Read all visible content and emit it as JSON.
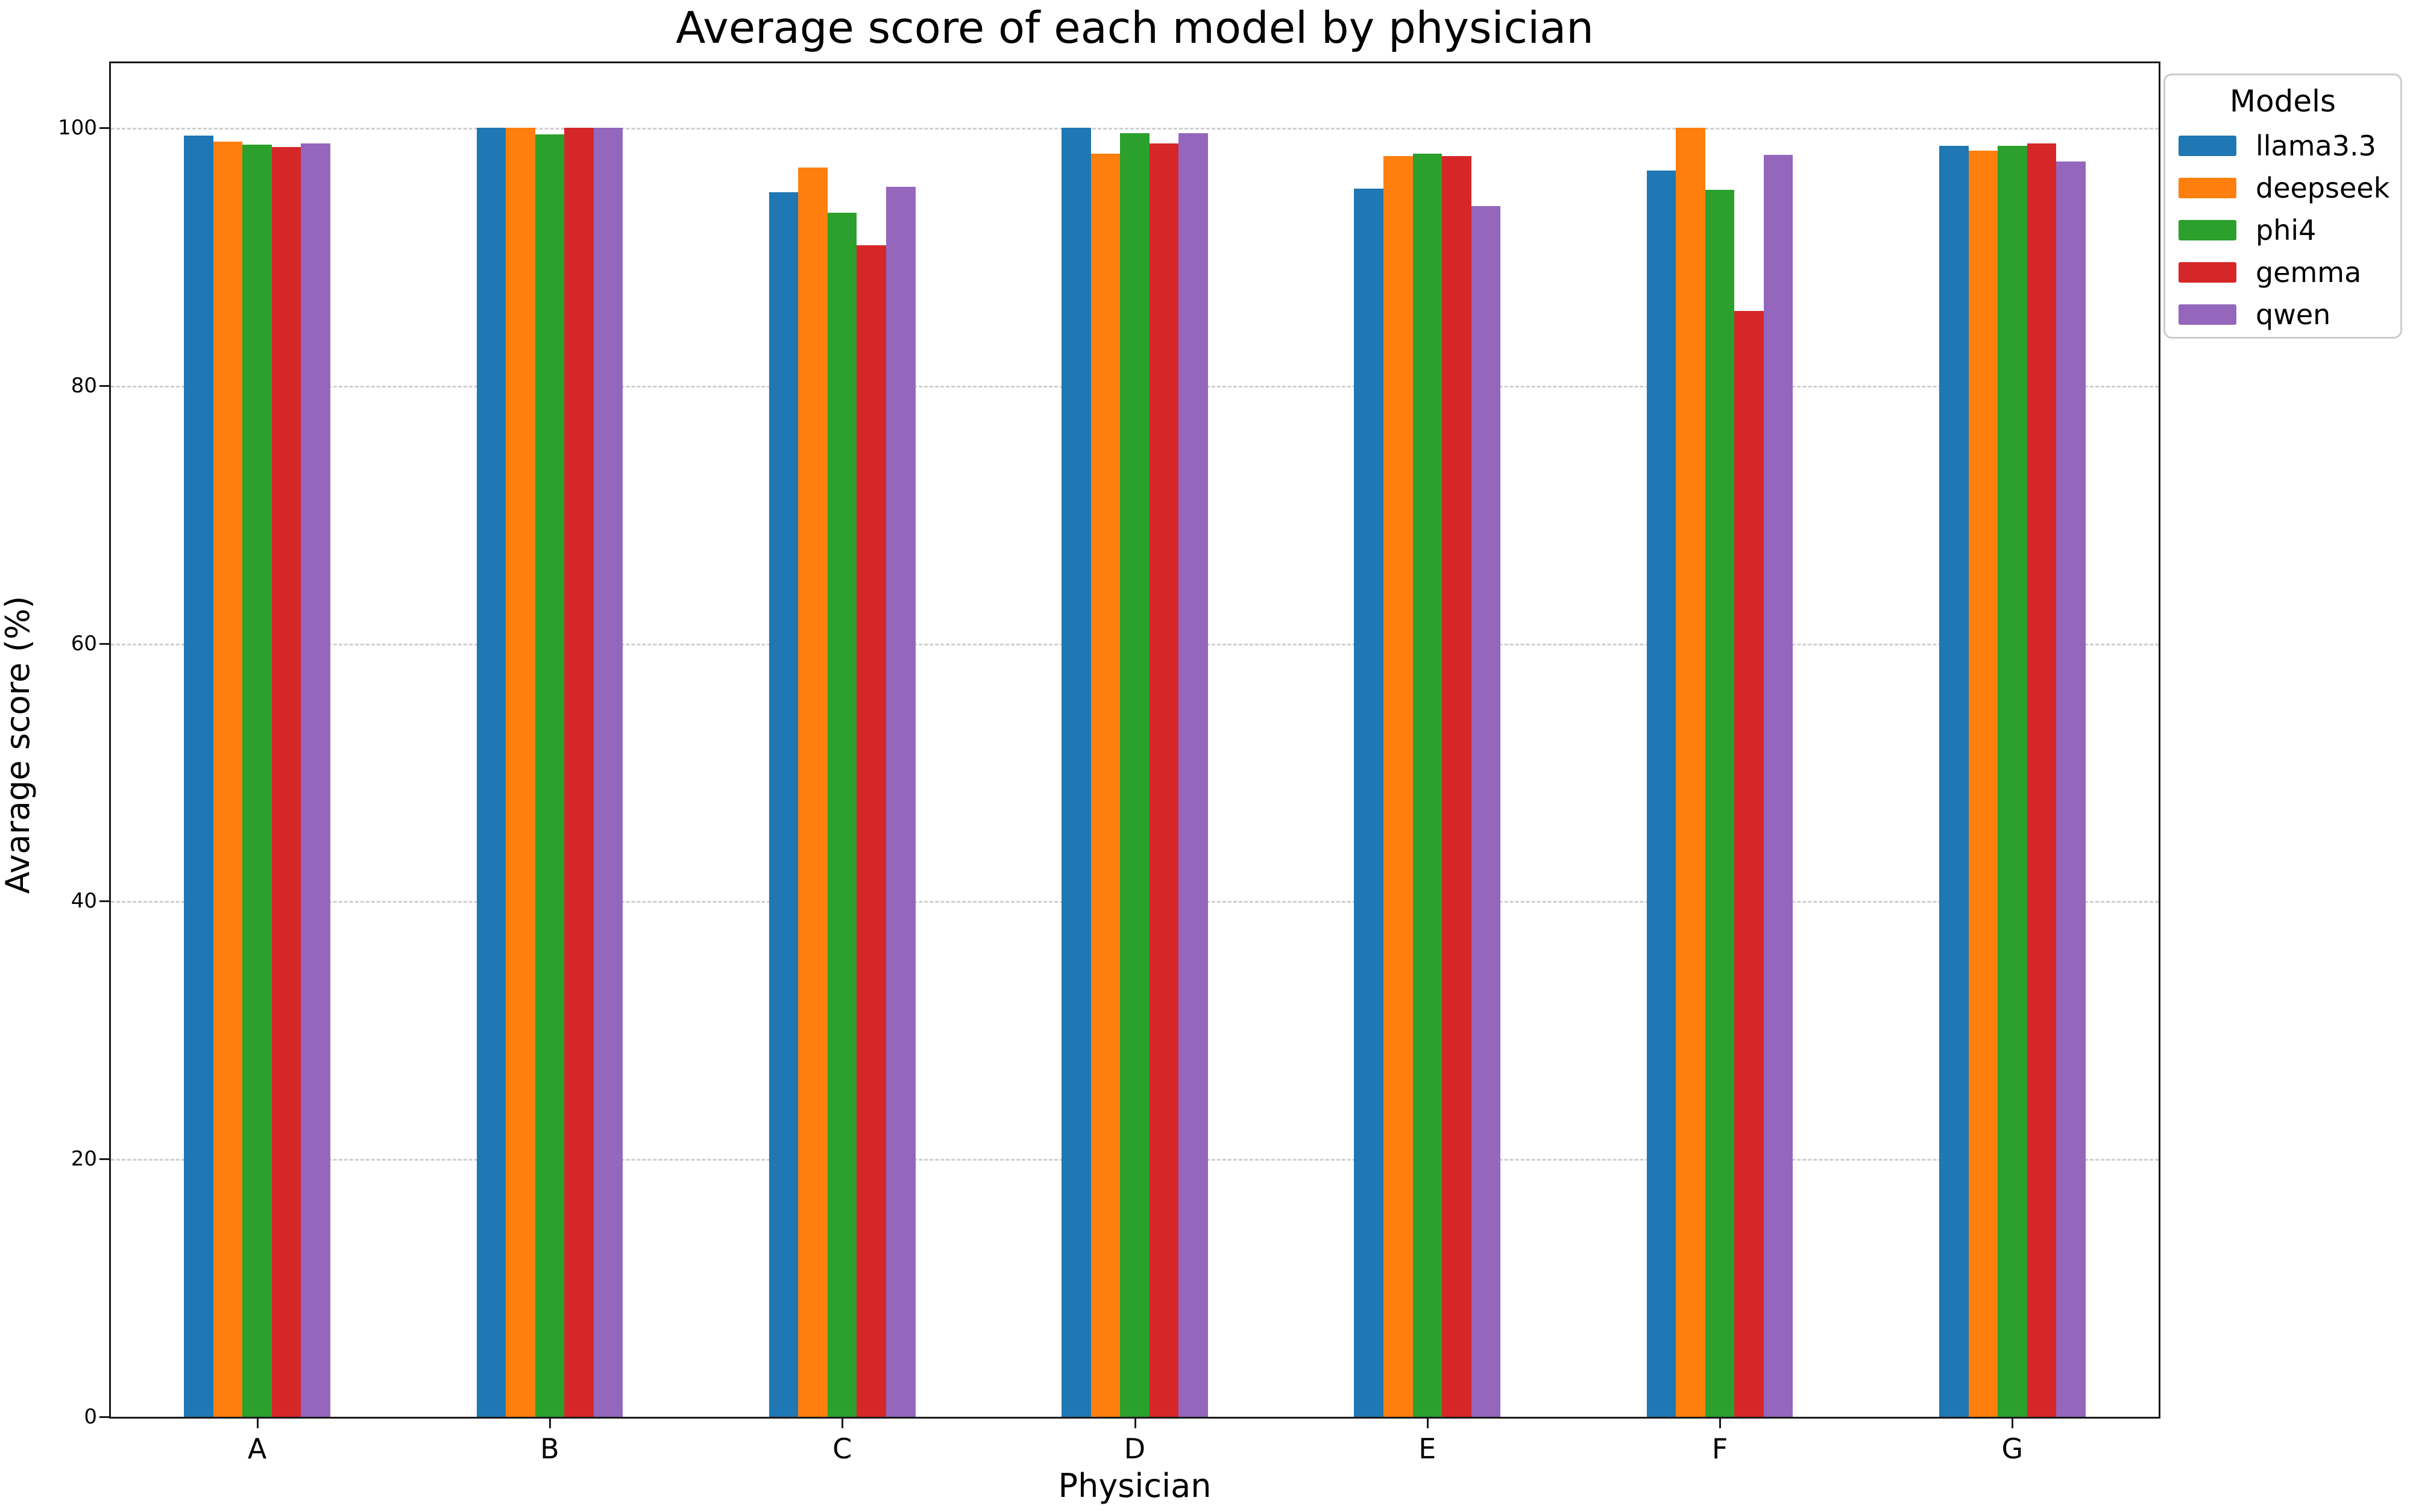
{
  "figure": {
    "background": "#ffffff"
  },
  "chart_data": {
    "type": "bar",
    "title": "Average score of each model by physician",
    "xlabel": "Physician",
    "ylabel": "Avarage score (%)",
    "categories": [
      "A",
      "B",
      "C",
      "D",
      "E",
      "F",
      "G"
    ],
    "series": [
      {
        "name": "llama3.3",
        "color": "#1f77b4",
        "values": [
          99.4,
          100,
          95.0,
          100,
          95.3,
          96.7,
          98.6
        ]
      },
      {
        "name": "deepseek",
        "color": "#ff7f0e",
        "values": [
          98.9,
          100,
          96.9,
          98.0,
          97.8,
          100,
          98.2
        ]
      },
      {
        "name": "phi4",
        "color": "#2ca02c",
        "values": [
          98.7,
          99.5,
          93.4,
          99.6,
          98.0,
          95.2,
          98.6
        ]
      },
      {
        "name": "gemma",
        "color": "#d62728",
        "values": [
          98.5,
          100,
          90.9,
          98.8,
          97.8,
          85.8,
          98.8
        ]
      },
      {
        "name": "qwen",
        "color": "#9467bd",
        "values": [
          98.8,
          100,
          95.4,
          99.6,
          93.9,
          97.9,
          97.4
        ]
      }
    ],
    "ylim": [
      0,
      105
    ],
    "yticks": [
      0,
      20,
      40,
      60,
      80,
      100
    ],
    "grid": {
      "axis": "y",
      "style": "dashed",
      "color": "#cfcfcf"
    },
    "legend": {
      "title": "Models",
      "position": "upper-right-outside"
    },
    "bar_group_width_fraction": 0.5,
    "bar_width_fraction": 0.1
  }
}
